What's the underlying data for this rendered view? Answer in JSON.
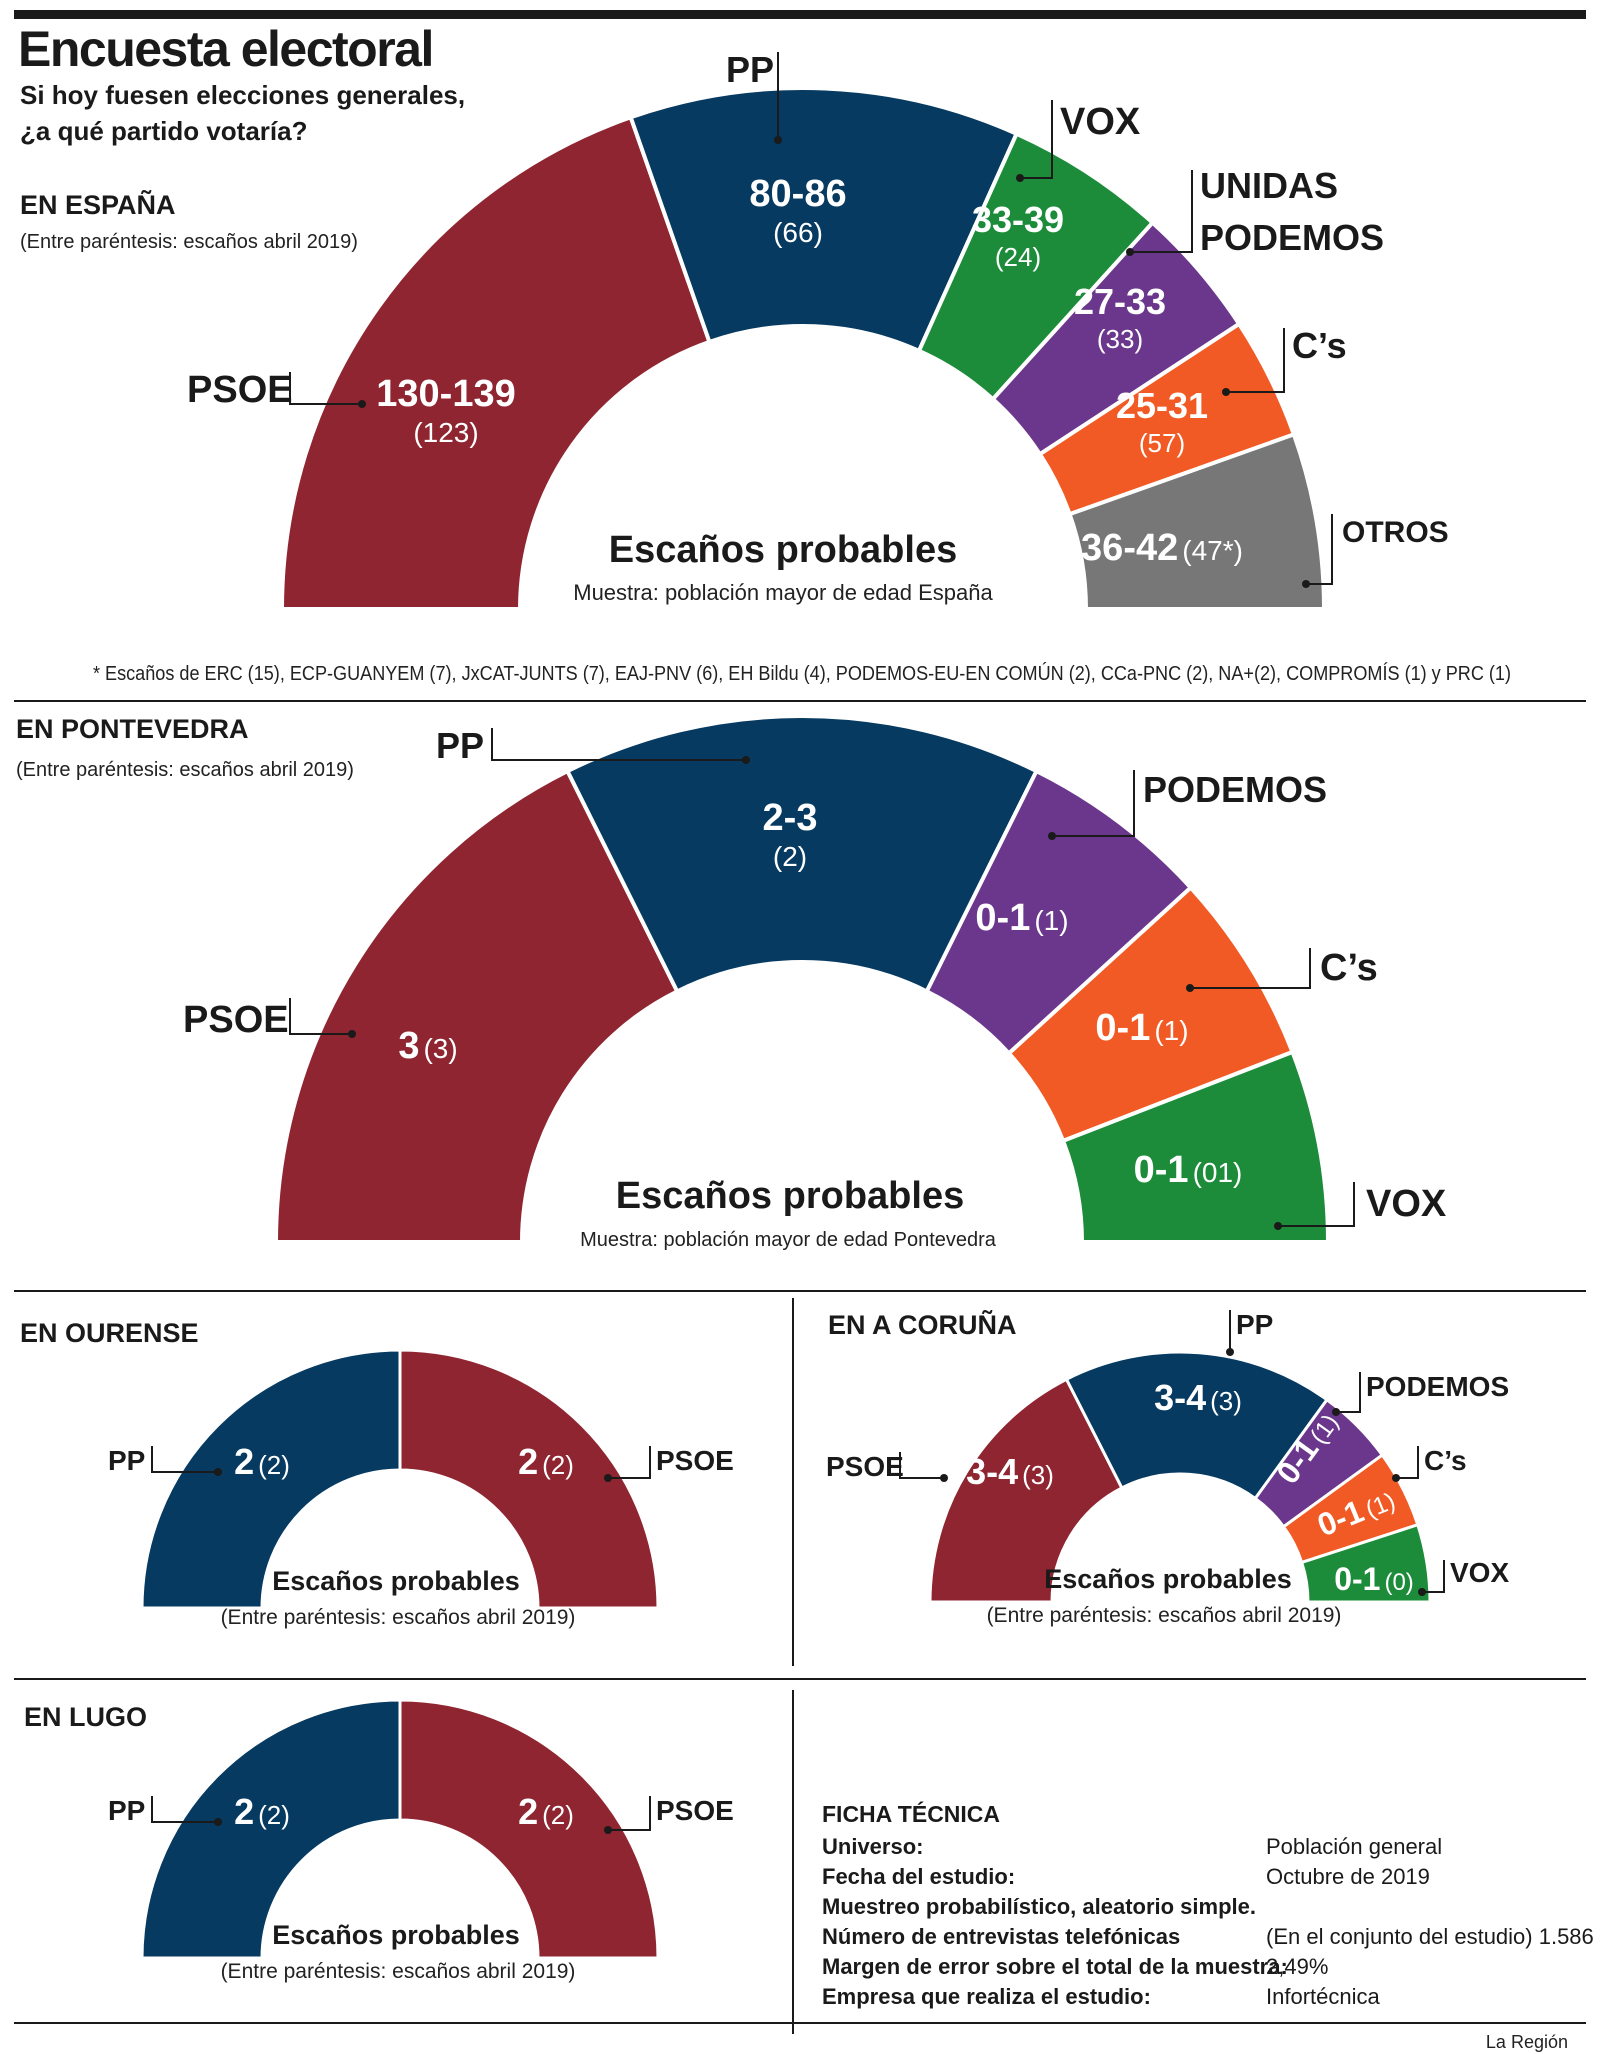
{
  "title": "Encuesta electoral",
  "subtitle1": "Si hoy fuesen elecciones generales,",
  "subtitle2": "¿a qué partido votaría?",
  "colors": {
    "PSOE": "#8f2530",
    "PP": "#063a61",
    "VOX": "#1d8c3a",
    "PODEMOS": "#6a378c",
    "CS": "#f15a24",
    "OTROS": "#777777"
  },
  "espana": {
    "heading": "EN ESPAÑA",
    "note": "(Entre paréntesis: escaños abril 2019)",
    "center_title": "Escaños probables",
    "center_sub": "Muestra: población mayor de edad España",
    "footnote": "* Escaños de ERC (15), ECP-GUANYEM (7), JxCAT-JUNTS (7), EAJ-PNV (6), EH Bildu (4), PODEMOS-EU-EN COMÚN (2), CCa-PNC (2), NA+(2), COMPROMÍS (1) y PRC (1)",
    "labels": {
      "PSOE": "PSOE",
      "PP": "PP",
      "VOX": "VOX",
      "UP1": "UNIDAS",
      "UP2": "PODEMOS",
      "CS": "C’s",
      "OTROS": "OTROS"
    }
  },
  "pontevedra": {
    "heading": "EN PONTEVEDRA",
    "note": "(Entre paréntesis: escaños abril 2019)",
    "center_title": "Escaños probables",
    "center_sub": "Muestra: población mayor de edad Pontevedra",
    "labels": {
      "PSOE": "PSOE",
      "PP": "PP",
      "PODEMOS": "PODEMOS",
      "CS": "C’s",
      "VOX": "VOX"
    }
  },
  "ourense": {
    "heading": "EN OURENSE",
    "center_title": "Escaños probables",
    "center_sub": "(Entre paréntesis: escaños abril 2019)",
    "labels": {
      "PP": "PP",
      "PSOE": "PSOE"
    }
  },
  "coruna": {
    "heading": "EN A CORUÑA",
    "center_title": "Escaños probables",
    "center_sub": "(Entre paréntesis: escaños abril 2019)",
    "labels": {
      "PSOE": "PSOE",
      "PP": "PP",
      "PODEMOS": "PODEMOS",
      "CS": "C’s",
      "VOX": "VOX"
    }
  },
  "lugo": {
    "heading": "EN LUGO",
    "center_title": "Escaños probables",
    "center_sub": "(Entre paréntesis: escaños abril 2019)",
    "labels": {
      "PP": "PP",
      "PSOE": "PSOE"
    }
  },
  "ficha": {
    "title": "FICHA TÉCNICA",
    "rows": [
      {
        "k": "Universo:",
        "v": "Población general"
      },
      {
        "k": "Fecha del estudio:",
        "v": "Octubre de 2019"
      },
      {
        "k": "Muestreo probabilístico, aleatorio simple.",
        "v": ""
      },
      {
        "k": "Número de entrevistas telefónicas",
        "v": "(En el conjunto del estudio) 1.586"
      },
      {
        "k": "Margen de error sobre el total de la muestra:",
        "v": "2,49%"
      },
      {
        "k": "Empresa que realiza el estudio:",
        "v": "Infortécnica"
      }
    ]
  },
  "credit": "La Región",
  "chart_data": [
    {
      "type": "pie",
      "title": "EN ESPAÑA",
      "categories": [
        "PSOE",
        "PP",
        "VOX",
        "UNIDAS PODEMOS",
        "C’s",
        "OTROS"
      ],
      "values": [
        130,
        80,
        33,
        27,
        25,
        36
      ],
      "range_labels": [
        "130-139",
        "80-86",
        "33-39",
        "27-33",
        "25-31",
        "36-42"
      ],
      "previous": [
        "(123)",
        "(66)",
        "(24)",
        "(33)",
        "(57)",
        "(47*)"
      ]
    },
    {
      "type": "pie",
      "title": "EN PONTEVEDRA",
      "categories": [
        "PSOE",
        "PP",
        "PODEMOS",
        "C’s",
        "VOX"
      ],
      "values": [
        3,
        2.5,
        1,
        1,
        1
      ],
      "range_labels": [
        "3",
        "2-3",
        "0-1",
        "0-1",
        "0-1"
      ],
      "previous": [
        "(3)",
        "(2)",
        "(1)",
        "(1)",
        "(01)"
      ]
    },
    {
      "type": "pie",
      "title": "EN OURENSE",
      "categories": [
        "PP",
        "PSOE"
      ],
      "values": [
        2,
        2
      ],
      "range_labels": [
        "2",
        "2"
      ],
      "previous": [
        "(2)",
        "(2)"
      ]
    },
    {
      "type": "pie",
      "title": "EN A CORUÑA",
      "categories": [
        "PSOE",
        "PP",
        "PODEMOS",
        "C’s",
        "VOX"
      ],
      "values": [
        3.5,
        3.5,
        1,
        1,
        1
      ],
      "range_labels": [
        "3-4",
        "3-4",
        "0-1",
        "0-1",
        "0-1"
      ],
      "previous": [
        "(3)",
        "(3)",
        "(1)",
        "(1)",
        "(0)"
      ]
    },
    {
      "type": "pie",
      "title": "EN LUGO",
      "categories": [
        "PP",
        "PSOE"
      ],
      "values": [
        2,
        2
      ],
      "range_labels": [
        "2",
        "2"
      ],
      "previous": [
        "(2)",
        "(2)"
      ]
    }
  ]
}
